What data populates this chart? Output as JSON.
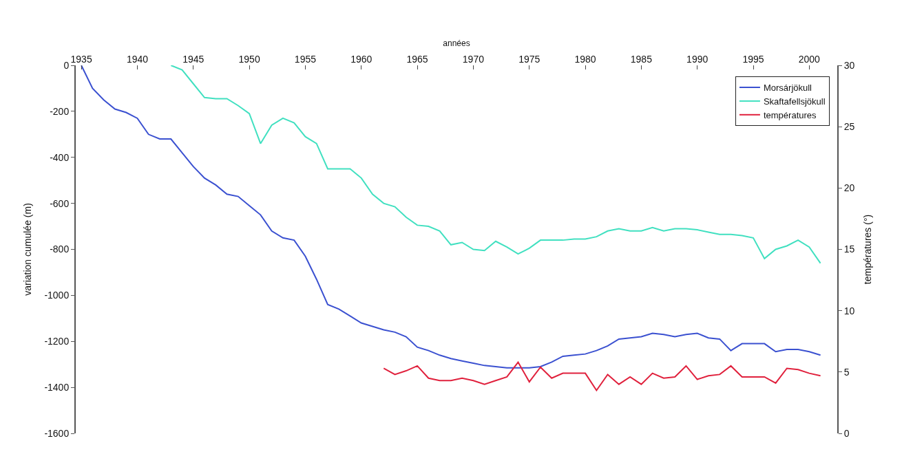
{
  "chart_data": {
    "type": "line",
    "xlabel": "années",
    "ylabel": "variation cumulée (m)",
    "y2label": "températures (°)",
    "xlim": [
      1934.5,
      2002.5
    ],
    "xticks": [
      1935,
      1940,
      1945,
      1950,
      1955,
      1960,
      1965,
      1970,
      1975,
      1980,
      1985,
      1990,
      1995,
      2000
    ],
    "ylim": [
      -1600,
      0
    ],
    "yticks": [
      -1600,
      -1400,
      -1200,
      -1000,
      -800,
      -600,
      -400,
      -200,
      0
    ],
    "y2lim": [
      0,
      30
    ],
    "y2ticks": [
      0,
      5,
      10,
      15,
      20,
      25,
      30
    ],
    "legend": "top right",
    "marker": "none",
    "line_style": "solid",
    "series": [
      {
        "name": "Morsárjökull",
        "color": "#3a50d0",
        "x": [
          1935,
          1936,
          1937,
          1938,
          1939,
          1940,
          1941,
          1942,
          1943,
          1944,
          1945,
          1946,
          1947,
          1948,
          1949,
          1950,
          1951,
          1952,
          1953,
          1954,
          1955,
          1956,
          1957,
          1958,
          1959,
          1960,
          1961,
          1962,
          1963,
          1964,
          1965,
          1966,
          1967,
          1968,
          1969,
          1970,
          1971,
          1972,
          1973,
          1974,
          1975,
          1976,
          1977,
          1978,
          1979,
          1980,
          1981,
          1982,
          1983,
          1984,
          1985,
          1986,
          1987,
          1988,
          1989,
          1990,
          1991,
          1992,
          1993,
          1994,
          1995,
          1996,
          1997,
          1998,
          1999,
          2000,
          2001
        ],
        "values": [
          0,
          -100,
          -150,
          -190,
          -205,
          -230,
          -300,
          -320,
          -320,
          -380,
          -440,
          -490,
          -520,
          -560,
          -570,
          -610,
          -650,
          -720,
          -750,
          -760,
          -830,
          -930,
          -1040,
          -1060,
          -1090,
          -1120,
          -1135,
          -1150,
          -1160,
          -1180,
          -1225,
          -1240,
          -1260,
          -1275,
          -1285,
          -1295,
          -1305,
          -1310,
          -1315,
          -1315,
          -1315,
          -1310,
          -1290,
          -1265,
          -1260,
          -1255,
          -1240,
          -1220,
          -1190,
          -1185,
          -1180,
          -1165,
          -1170,
          -1180,
          -1170,
          -1165,
          -1185,
          -1190,
          -1240,
          -1210,
          -1210,
          -1210,
          -1245,
          -1235,
          -1235,
          -1245,
          -1260
        ]
      },
      {
        "name": "Skaftafellsjökull",
        "color": "#40e0c0",
        "x": [
          1943,
          1944,
          1945,
          1946,
          1947,
          1948,
          1949,
          1950,
          1951,
          1952,
          1953,
          1954,
          1955,
          1956,
          1957,
          1958,
          1959,
          1960,
          1961,
          1962,
          1963,
          1964,
          1965,
          1966,
          1967,
          1968,
          1969,
          1970,
          1971,
          1972,
          1973,
          1974,
          1975,
          1976,
          1977,
          1978,
          1979,
          1980,
          1981,
          1982,
          1983,
          1984,
          1985,
          1986,
          1987,
          1988,
          1989,
          1990,
          1991,
          1992,
          1993,
          1994,
          1995,
          1996,
          1997,
          1998,
          1999,
          2000,
          2001
        ],
        "values": [
          0,
          -20,
          -80,
          -140,
          -145,
          -145,
          -175,
          -210,
          -340,
          -260,
          -230,
          -250,
          -310,
          -340,
          -450,
          -450,
          -450,
          -490,
          -560,
          -600,
          -615,
          -660,
          -695,
          -700,
          -720,
          -780,
          -770,
          -800,
          -805,
          -765,
          -790,
          -820,
          -795,
          -760,
          -760,
          -760,
          -755,
          -755,
          -745,
          -720,
          -710,
          -720,
          -720,
          -705,
          -720,
          -710,
          -710,
          -715,
          -725,
          -735,
          -735,
          -740,
          -750,
          -840,
          -800,
          -785,
          -760,
          -790,
          -860
        ]
      },
      {
        "name": "températures",
        "color": "#e0203c",
        "axis": "y2",
        "x": [
          1962,
          1963,
          1964,
          1965,
          1966,
          1967,
          1968,
          1969,
          1970,
          1971,
          1972,
          1973,
          1974,
          1975,
          1976,
          1977,
          1978,
          1979,
          1980,
          1981,
          1982,
          1983,
          1984,
          1985,
          1986,
          1987,
          1988,
          1989,
          1990,
          1991,
          1992,
          1993,
          1994,
          1995,
          1996,
          1997,
          1998,
          1999,
          2000,
          2001
        ],
        "values": [
          5.3,
          4.8,
          5.1,
          5.5,
          4.5,
          4.3,
          4.3,
          4.5,
          4.3,
          4.0,
          4.3,
          4.6,
          5.8,
          4.2,
          5.4,
          4.5,
          4.9,
          4.9,
          4.9,
          3.5,
          4.8,
          4.0,
          4.6,
          4.0,
          4.9,
          4.5,
          4.6,
          5.5,
          4.4,
          4.7,
          4.8,
          5.5,
          4.6,
          4.6,
          4.6,
          4.1,
          5.3,
          5.2,
          4.9,
          4.7
        ]
      }
    ]
  }
}
